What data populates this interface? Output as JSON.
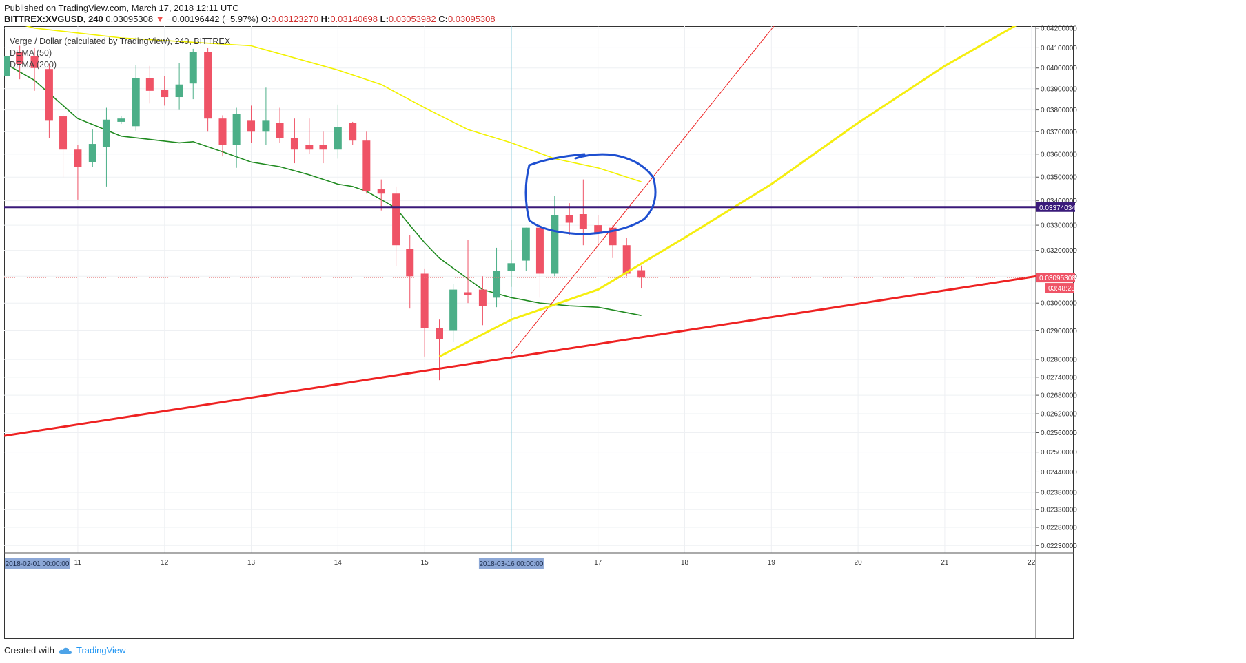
{
  "header": {
    "published": "Published on TradingView.com, March 17, 2018 12:11 UTC",
    "symbol": "BITTREX:XVGUSD, 240",
    "last": "0.03095308",
    "change": "−0.00196442 (−5.97%)",
    "open_label": "O:",
    "open": "0.03123270",
    "high_label": "H:",
    "high": "0.03140698",
    "low_label": "L:",
    "low": "0.03053982",
    "close_label": "C:",
    "close": "0.03095308"
  },
  "legend": {
    "title": "Verge / Dollar (calculated by TradingView), 240, BITTREX",
    "dema50": "DEMA (50)",
    "dema200": "DEMA (200)"
  },
  "footer": {
    "created_with": "Created with",
    "brand": "TradingView"
  },
  "colors": {
    "up": "#4caf88",
    "down": "#ef5366",
    "dema50": "#1f8a1f",
    "dema200": "#f2f200",
    "support": "#ee2222",
    "trend_thin": "#ee2222",
    "trend_yellow": "#f5ee10",
    "horizontal": "#3a1a7a",
    "circle": "#1e4fd0",
    "crosshair": "#7fc9d9"
  },
  "chart_data": {
    "type": "candlestick",
    "symbol": "BITTREX:XVGUSD",
    "interval": "240",
    "x_axis": {
      "labels": [
        {
          "day": 11,
          "text": "11"
        },
        {
          "day": 12,
          "text": "12"
        },
        {
          "day": 13,
          "text": "13"
        },
        {
          "day": 14,
          "text": "14"
        },
        {
          "day": 15,
          "text": "15"
        },
        {
          "day": 17,
          "text": "17"
        },
        {
          "day": 18,
          "text": "18"
        },
        {
          "day": 19,
          "text": "19"
        },
        {
          "day": 20,
          "text": "20"
        },
        {
          "day": 21,
          "text": "21"
        },
        {
          "day": 22,
          "text": "22"
        }
      ],
      "left_marker": "2018-02-01 00:00:00",
      "crosshair_marker": "2018-03-16 00:00:00",
      "range_days": [
        10.15,
        22.05
      ]
    },
    "y_axis": {
      "ticks": [
        "0.04200000",
        "0.04100000",
        "0.04000000",
        "0.03900000",
        "0.03800000",
        "0.03700000",
        "0.03600000",
        "0.03500000",
        "0.03400000",
        "0.03300000",
        "0.03200000",
        "0.03100000",
        "0.03000000",
        "0.02900000",
        "0.02800000",
        "0.02740000",
        "0.02680000",
        "0.02620000",
        "0.02560000",
        "0.02500000",
        "0.02440000",
        "0.02380000",
        "0.02330000",
        "0.02280000",
        "0.02230000"
      ],
      "log_scale": true,
      "range": [
        0.0221,
        0.0421
      ]
    },
    "price_labels": {
      "horizontal_line": "0.03374034",
      "last_price": "0.03095308",
      "countdown": "03:48:28"
    },
    "candles": [
      {
        "t": 10.17,
        "o": 0.0396,
        "h": 0.0414,
        "l": 0.03905,
        "c": 0.0406
      },
      {
        "t": 10.33,
        "o": 0.0408,
        "h": 0.0411,
        "l": 0.03945,
        "c": 0.0402
      },
      {
        "t": 10.5,
        "o": 0.0406,
        "h": 0.041,
        "l": 0.0389,
        "c": 0.04
      },
      {
        "t": 10.67,
        "o": 0.03995,
        "h": 0.0402,
        "l": 0.0367,
        "c": 0.0375
      },
      {
        "t": 10.83,
        "o": 0.0377,
        "h": 0.0378,
        "l": 0.035,
        "c": 0.0362
      },
      {
        "t": 11.0,
        "o": 0.0362,
        "h": 0.0364,
        "l": 0.03405,
        "c": 0.03545
      },
      {
        "t": 11.17,
        "o": 0.03565,
        "h": 0.0371,
        "l": 0.03545,
        "c": 0.03645
      },
      {
        "t": 11.33,
        "o": 0.0363,
        "h": 0.0381,
        "l": 0.0346,
        "c": 0.03755
      },
      {
        "t": 11.5,
        "o": 0.03745,
        "h": 0.0377,
        "l": 0.03735,
        "c": 0.0376
      },
      {
        "t": 11.67,
        "o": 0.03725,
        "h": 0.04015,
        "l": 0.03705,
        "c": 0.0395
      },
      {
        "t": 11.83,
        "o": 0.0395,
        "h": 0.0401,
        "l": 0.0383,
        "c": 0.0389
      },
      {
        "t": 12.0,
        "o": 0.03895,
        "h": 0.0396,
        "l": 0.0382,
        "c": 0.0386
      },
      {
        "t": 12.17,
        "o": 0.0386,
        "h": 0.04025,
        "l": 0.038,
        "c": 0.0392
      },
      {
        "t": 12.33,
        "o": 0.03925,
        "h": 0.04095,
        "l": 0.0385,
        "c": 0.0408
      },
      {
        "t": 12.5,
        "o": 0.0408,
        "h": 0.041,
        "l": 0.037,
        "c": 0.0376
      },
      {
        "t": 12.67,
        "o": 0.0376,
        "h": 0.03775,
        "l": 0.0359,
        "c": 0.0364
      },
      {
        "t": 12.83,
        "o": 0.0364,
        "h": 0.0381,
        "l": 0.0354,
        "c": 0.0378
      },
      {
        "t": 13.0,
        "o": 0.0375,
        "h": 0.0382,
        "l": 0.0365,
        "c": 0.037
      },
      {
        "t": 13.17,
        "o": 0.037,
        "h": 0.03905,
        "l": 0.0364,
        "c": 0.0375
      },
      {
        "t": 13.33,
        "o": 0.0374,
        "h": 0.0381,
        "l": 0.0365,
        "c": 0.0367
      },
      {
        "t": 13.5,
        "o": 0.0367,
        "h": 0.0376,
        "l": 0.0356,
        "c": 0.0362
      },
      {
        "t": 13.67,
        "o": 0.0364,
        "h": 0.0376,
        "l": 0.036,
        "c": 0.0362
      },
      {
        "t": 13.83,
        "o": 0.0364,
        "h": 0.037,
        "l": 0.0356,
        "c": 0.0362
      },
      {
        "t": 14.0,
        "o": 0.0362,
        "h": 0.03825,
        "l": 0.0358,
        "c": 0.0372
      },
      {
        "t": 14.17,
        "o": 0.0374,
        "h": 0.03745,
        "l": 0.0364,
        "c": 0.0366
      },
      {
        "t": 14.33,
        "o": 0.0366,
        "h": 0.037,
        "l": 0.0343,
        "c": 0.0344
      },
      {
        "t": 14.5,
        "o": 0.0345,
        "h": 0.0349,
        "l": 0.0336,
        "c": 0.0343
      },
      {
        "t": 14.67,
        "o": 0.0343,
        "h": 0.0346,
        "l": 0.0314,
        "c": 0.0322
      },
      {
        "t": 14.83,
        "o": 0.03205,
        "h": 0.0326,
        "l": 0.0298,
        "c": 0.031
      },
      {
        "t": 15.0,
        "o": 0.0311,
        "h": 0.0313,
        "l": 0.0281,
        "c": 0.0291
      },
      {
        "t": 15.17,
        "o": 0.0291,
        "h": 0.0294,
        "l": 0.0273,
        "c": 0.0287
      },
      {
        "t": 15.33,
        "o": 0.029,
        "h": 0.0307,
        "l": 0.0286,
        "c": 0.0305
      },
      {
        "t": 15.5,
        "o": 0.0304,
        "h": 0.0324,
        "l": 0.03,
        "c": 0.0303
      },
      {
        "t": 15.67,
        "o": 0.0305,
        "h": 0.031,
        "l": 0.0292,
        "c": 0.0299
      },
      {
        "t": 15.83,
        "o": 0.0302,
        "h": 0.0321,
        "l": 0.02985,
        "c": 0.0312
      },
      {
        "t": 16.0,
        "o": 0.0312,
        "h": 0.0324,
        "l": 0.0306,
        "c": 0.0315
      },
      {
        "t": 16.17,
        "o": 0.0316,
        "h": 0.0329,
        "l": 0.0312,
        "c": 0.0329
      },
      {
        "t": 16.33,
        "o": 0.0329,
        "h": 0.0331,
        "l": 0.0302,
        "c": 0.0311
      },
      {
        "t": 16.5,
        "o": 0.0311,
        "h": 0.0342,
        "l": 0.031,
        "c": 0.0334
      },
      {
        "t": 16.67,
        "o": 0.0334,
        "h": 0.0339,
        "l": 0.0326,
        "c": 0.0331
      },
      {
        "t": 16.83,
        "o": 0.03345,
        "h": 0.0349,
        "l": 0.0322,
        "c": 0.03285
      },
      {
        "t": 17.0,
        "o": 0.033,
        "h": 0.0334,
        "l": 0.03215,
        "c": 0.0327
      },
      {
        "t": 17.17,
        "o": 0.0329,
        "h": 0.033,
        "l": 0.0317,
        "c": 0.0322
      },
      {
        "t": 17.33,
        "o": 0.0322,
        "h": 0.0325,
        "l": 0.031,
        "c": 0.0311
      },
      {
        "t": 17.5,
        "o": 0.03123,
        "h": 0.03141,
        "l": 0.03054,
        "c": 0.03095
      }
    ],
    "dema50": [
      [
        10.17,
        0.0402
      ],
      [
        10.5,
        0.0394
      ],
      [
        11.0,
        0.0376
      ],
      [
        11.5,
        0.0368
      ],
      [
        12.17,
        0.0365
      ],
      [
        12.33,
        0.03655
      ],
      [
        12.67,
        0.0361
      ],
      [
        13.0,
        0.03565
      ],
      [
        13.33,
        0.03545
      ],
      [
        13.67,
        0.0351
      ],
      [
        14.0,
        0.0347
      ],
      [
        14.17,
        0.0346
      ],
      [
        14.33,
        0.0344
      ],
      [
        14.67,
        0.0337
      ],
      [
        14.83,
        0.033
      ],
      [
        15.0,
        0.0323
      ],
      [
        15.17,
        0.0317
      ],
      [
        15.5,
        0.0309
      ],
      [
        15.67,
        0.0305
      ],
      [
        16.0,
        0.0302
      ],
      [
        16.17,
        0.0301
      ],
      [
        16.33,
        0.03
      ],
      [
        16.67,
        0.0299
      ],
      [
        17.0,
        0.02985
      ],
      [
        17.17,
        0.02975
      ],
      [
        17.5,
        0.02955
      ]
    ],
    "dema200": [
      [
        10.17,
        0.0424
      ],
      [
        10.5,
        0.042
      ],
      [
        11.5,
        0.0415
      ],
      [
        13.0,
        0.0411
      ],
      [
        14.0,
        0.0399
      ],
      [
        14.5,
        0.0392
      ],
      [
        15.0,
        0.0381
      ],
      [
        15.5,
        0.0371
      ],
      [
        16.0,
        0.0365
      ],
      [
        16.5,
        0.0358
      ],
      [
        17.0,
        0.0354
      ],
      [
        17.5,
        0.0348
      ]
    ],
    "trendlines": [
      {
        "name": "support-line",
        "from": [
          10.15,
          0.0255
        ],
        "to": [
          22.05,
          0.031
        ]
      },
      {
        "name": "thin-red-trendline",
        "from": [
          16.0,
          0.0282
        ],
        "to": [
          19.1,
          0.0425
        ]
      },
      {
        "name": "yellow-trendline",
        "curved": true,
        "points": [
          [
            15.17,
            0.0281
          ],
          [
            16.0,
            0.0294
          ],
          [
            17.0,
            0.0305
          ],
          [
            18.0,
            0.0325
          ],
          [
            19.0,
            0.0347
          ],
          [
            20.0,
            0.0374
          ],
          [
            21.0,
            0.0401
          ],
          [
            22.0,
            0.0426
          ]
        ]
      },
      {
        "name": "horizontal-line",
        "y": 0.03374034
      }
    ]
  }
}
